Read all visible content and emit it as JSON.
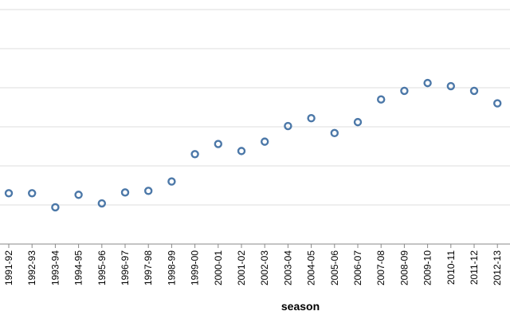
{
  "chart_data": {
    "type": "scatter",
    "xlabel": "season",
    "ylabel": "",
    "title": "",
    "x": [
      "1991-92",
      "1992-93",
      "1993-94",
      "1994-95",
      "1995-96",
      "1996-97",
      "1997-98",
      "1998-99",
      "1999-00",
      "2000-01",
      "2001-02",
      "2002-03",
      "2003-04",
      "2004-05",
      "2005-06",
      "2006-07",
      "2007-08",
      "2008-09",
      "2009-10",
      "2010-11",
      "2011-12",
      "2012-13"
    ],
    "y": [
      1.3,
      1.3,
      0.94,
      1.26,
      1.04,
      1.32,
      1.36,
      1.6,
      2.3,
      2.56,
      2.38,
      2.62,
      3.02,
      3.22,
      2.84,
      3.12,
      3.7,
      3.92,
      4.12,
      4.04,
      3.92,
      3.6
    ],
    "ylim": [
      0,
      6
    ],
    "y_gridlines": [
      1,
      2,
      3,
      4,
      5,
      6
    ],
    "grid": true,
    "point_style": "open-circle",
    "colors": {
      "point": "#4c78a8",
      "grid": "#dddddd",
      "axis": "#888888"
    }
  }
}
